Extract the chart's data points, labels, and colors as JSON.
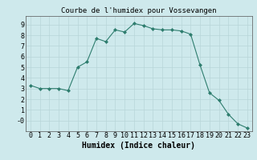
{
  "x": [
    0,
    1,
    2,
    3,
    4,
    5,
    6,
    7,
    8,
    9,
    10,
    11,
    12,
    13,
    14,
    15,
    16,
    17,
    18,
    19,
    20,
    21,
    22,
    23
  ],
  "y": [
    3.3,
    3.0,
    3.0,
    3.0,
    2.8,
    5.0,
    5.5,
    7.7,
    7.4,
    8.5,
    8.3,
    9.1,
    8.9,
    8.6,
    8.5,
    8.5,
    8.4,
    8.1,
    5.2,
    2.6,
    1.9,
    0.6,
    -0.3,
    -0.7
  ],
  "title": "Courbe de l'humidex pour Vossevangen",
  "xlabel": "Humidex (Indice chaleur)",
  "xlim": [
    -0.5,
    23.5
  ],
  "ylim": [
    -1.0,
    9.8
  ],
  "line_color": "#2e7d6e",
  "marker_color": "#2e7d6e",
  "bg_color": "#cee9ec",
  "grid_color": "#b8d5d8",
  "title_fontsize": 6.5,
  "label_fontsize": 7,
  "tick_fontsize": 6,
  "yticks": [
    0,
    1,
    2,
    3,
    4,
    5,
    6,
    7,
    8,
    9
  ],
  "ytick_labels": [
    "-0",
    "1",
    "2",
    "3",
    "4",
    "5",
    "6",
    "7",
    "8",
    "9"
  ]
}
